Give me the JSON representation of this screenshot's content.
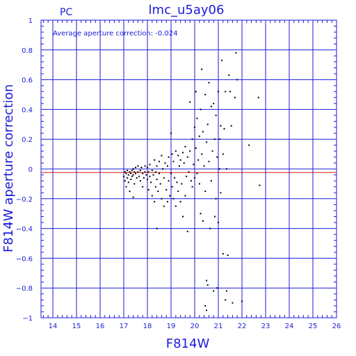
{
  "chart_data": {
    "type": "scatter",
    "title": "lmc_u5ay06",
    "corner_label": "PC",
    "annotation": "Average aperture correction: -0.024",
    "xlabel": "F814W",
    "ylabel": "F814W aperture correction",
    "xlim": [
      13.5,
      26
    ],
    "ylim": [
      -1,
      1
    ],
    "x_ticks": [
      14,
      15,
      16,
      17,
      18,
      19,
      20,
      21,
      22,
      23,
      24,
      25,
      26
    ],
    "y_ticks": [
      -1,
      -0.8,
      -0.6,
      -0.4,
      -0.2,
      0,
      0.2,
      0.4,
      0.6,
      0.8,
      1
    ],
    "y_tick_labels": [
      "−1",
      "−0.8",
      "−0.6",
      "−0.4",
      "−0.2",
      "0",
      "0.2",
      "0.4",
      "0.6",
      "0.8",
      "1"
    ],
    "grid": true,
    "average_line": {
      "value": -0.024,
      "color": "#d01010"
    },
    "zero_line": {
      "value": 0,
      "color": "#1a1ad8"
    },
    "colors": {
      "axes": "#1a1ad8",
      "points": "#000000",
      "average": "#d01010"
    },
    "points": [
      [
        17.0,
        -0.05
      ],
      [
        17.05,
        -0.02
      ],
      [
        17.05,
        -0.08
      ],
      [
        17.1,
        -0.03
      ],
      [
        17.1,
        -0.12
      ],
      [
        17.15,
        -0.01
      ],
      [
        17.15,
        -0.06
      ],
      [
        17.2,
        -0.04
      ],
      [
        17.2,
        -0.09
      ],
      [
        17.25,
        -0.02
      ],
      [
        17.25,
        -0.15
      ],
      [
        17.3,
        -0.03
      ],
      [
        17.3,
        -0.07
      ],
      [
        17.35,
        -0.01
      ],
      [
        17.35,
        -0.05
      ],
      [
        17.4,
        0.0
      ],
      [
        17.4,
        -0.04
      ],
      [
        17.4,
        -0.19
      ],
      [
        17.45,
        -0.02
      ],
      [
        17.45,
        -0.1
      ],
      [
        17.5,
        0.01
      ],
      [
        17.5,
        -0.03
      ],
      [
        17.55,
        -0.06
      ],
      [
        17.6,
        0.02
      ],
      [
        17.6,
        -0.02
      ],
      [
        17.65,
        -0.05
      ],
      [
        17.7,
        -0.01
      ],
      [
        17.7,
        -0.08
      ],
      [
        17.75,
        0.01
      ],
      [
        17.8,
        -0.03
      ],
      [
        17.8,
        -0.12
      ],
      [
        17.85,
        -0.06
      ],
      [
        17.9,
        0.02
      ],
      [
        17.9,
        -0.02
      ],
      [
        17.95,
        -0.04
      ],
      [
        18.0,
        0.01
      ],
      [
        18.0,
        -0.07
      ],
      [
        18.05,
        -0.02
      ],
      [
        18.05,
        -0.14
      ],
      [
        18.1,
        -0.05
      ],
      [
        18.1,
        0.03
      ],
      [
        18.15,
        -0.09
      ],
      [
        18.2,
        -0.01
      ],
      [
        18.2,
        -0.18
      ],
      [
        18.25,
        -0.04
      ],
      [
        18.3,
        0.06
      ],
      [
        18.3,
        -0.22
      ],
      [
        18.35,
        -0.02
      ],
      [
        18.35,
        -0.12
      ],
      [
        18.4,
        0.02
      ],
      [
        18.4,
        -0.07
      ],
      [
        18.4,
        -0.4
      ],
      [
        18.45,
        -0.15
      ],
      [
        18.5,
        0.05
      ],
      [
        18.5,
        -0.03
      ],
      [
        18.55,
        -0.1
      ],
      [
        18.6,
        0.09
      ],
      [
        18.6,
        -0.2
      ],
      [
        18.65,
        0.0
      ],
      [
        18.7,
        -0.06
      ],
      [
        18.7,
        -0.25
      ],
      [
        18.75,
        0.04
      ],
      [
        18.8,
        -0.14
      ],
      [
        18.85,
        0.02
      ],
      [
        18.85,
        -0.22
      ],
      [
        18.9,
        -0.08
      ],
      [
        18.9,
        0.08
      ],
      [
        18.95,
        -0.18
      ],
      [
        19.0,
        0.24
      ],
      [
        19.0,
        -0.03
      ],
      [
        19.05,
        -0.12
      ],
      [
        19.05,
        0.1
      ],
      [
        19.1,
        -0.2
      ],
      [
        19.1,
        0.05
      ],
      [
        19.15,
        -0.06
      ],
      [
        19.2,
        0.12
      ],
      [
        19.2,
        -0.25
      ],
      [
        19.25,
        -0.09
      ],
      [
        19.3,
        0.09
      ],
      [
        19.3,
        -0.15
      ],
      [
        19.35,
        0.02
      ],
      [
        19.4,
        -0.22
      ],
      [
        19.4,
        0.06
      ],
      [
        19.45,
        -0.1
      ],
      [
        19.5,
        0.11
      ],
      [
        19.5,
        -0.32
      ],
      [
        19.55,
        0.04
      ],
      [
        19.6,
        -0.18
      ],
      [
        19.6,
        0.15
      ],
      [
        19.65,
        -0.05
      ],
      [
        19.7,
        0.08
      ],
      [
        19.7,
        -0.42
      ],
      [
        19.75,
        -0.02
      ],
      [
        19.8,
        0.45
      ],
      [
        19.8,
        0.12
      ],
      [
        19.85,
        -0.08
      ],
      [
        19.9,
        0.2
      ],
      [
        19.9,
        -0.12
      ],
      [
        19.95,
        0.03
      ],
      [
        20.0,
        0.28
      ],
      [
        20.0,
        -0.06
      ],
      [
        20.05,
        0.52
      ],
      [
        20.05,
        0.14
      ],
      [
        20.1,
        -0.03
      ],
      [
        20.1,
        0.34
      ],
      [
        20.15,
        0.06
      ],
      [
        20.2,
        0.22
      ],
      [
        20.2,
        -0.1
      ],
      [
        20.25,
        0.4
      ],
      [
        20.25,
        -0.3
      ],
      [
        20.3,
        0.67
      ],
      [
        20.3,
        0.1
      ],
      [
        20.35,
        0.25
      ],
      [
        20.35,
        -0.35
      ],
      [
        20.4,
        0.02
      ],
      [
        20.45,
        0.5
      ],
      [
        20.45,
        -0.15
      ],
      [
        20.5,
        0.18
      ],
      [
        20.5,
        -0.75
      ],
      [
        20.55,
        0.3
      ],
      [
        20.55,
        -0.78
      ],
      [
        20.6,
        0.58
      ],
      [
        20.6,
        0.05
      ],
      [
        20.65,
        -0.4
      ],
      [
        20.7,
        0.42
      ],
      [
        20.7,
        -0.08
      ],
      [
        20.75,
        0.12
      ],
      [
        20.8,
        0.44
      ],
      [
        20.8,
        -0.82
      ],
      [
        20.85,
        0.2
      ],
      [
        20.85,
        -0.32
      ],
      [
        20.9,
        0.36
      ],
      [
        20.9,
        -0.2
      ],
      [
        20.95,
        0.08
      ],
      [
        21.0,
        0.52
      ],
      [
        21.0,
        -0.36
      ],
      [
        21.05,
        0.2
      ],
      [
        21.05,
        0.0
      ],
      [
        21.1,
        0.29
      ],
      [
        21.1,
        -0.16
      ],
      [
        21.15,
        0.73
      ],
      [
        21.2,
        0.1
      ],
      [
        21.2,
        -0.57
      ],
      [
        21.25,
        0.27
      ],
      [
        21.3,
        0.52
      ],
      [
        21.3,
        -0.88
      ],
      [
        21.35,
        0.0
      ],
      [
        21.4,
        -0.58
      ],
      [
        21.45,
        0.63
      ],
      [
        21.5,
        0.52
      ],
      [
        21.55,
        0.29
      ],
      [
        21.6,
        -0.9
      ],
      [
        21.7,
        0.48
      ],
      [
        21.75,
        0.78
      ],
      [
        21.8,
        0.6
      ],
      [
        22.0,
        -0.89
      ],
      [
        22.3,
        0.16
      ],
      [
        22.7,
        0.48
      ],
      [
        22.75,
        -0.11
      ],
      [
        20.45,
        -0.92
      ],
      [
        20.5,
        -0.95
      ],
      [
        20.95,
        -0.8
      ],
      [
        21.35,
        -0.82
      ]
    ]
  }
}
